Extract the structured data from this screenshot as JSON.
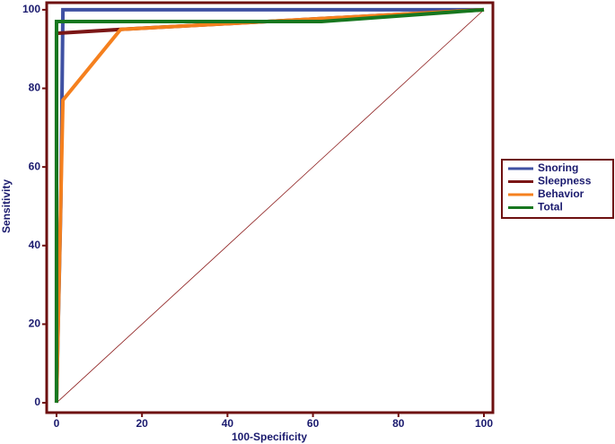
{
  "chart_data": {
    "type": "line",
    "x_label": "100-Specificity",
    "y_label": "Sensitivity",
    "xlim": [
      -2.3,
      102.1
    ],
    "ylim": [
      -2.5,
      101.8
    ],
    "xticks": [
      0,
      20,
      40,
      60,
      80,
      100
    ],
    "yticks": [
      0,
      20,
      40,
      60,
      80,
      100
    ],
    "reference": {
      "x": [
        0,
        100
      ],
      "values": [
        0,
        100
      ],
      "color": "#8b1a1a"
    },
    "series": [
      {
        "name": "Snoring",
        "color": "#3f51a3",
        "x": [
          0,
          1,
          1.5,
          100
        ],
        "values": [
          0,
          50,
          100,
          100
        ]
      },
      {
        "name": "Sleepness",
        "color": "#7b1616",
        "x": [
          0,
          0,
          15,
          100
        ],
        "values": [
          0,
          94,
          95,
          100
        ]
      },
      {
        "name": "Behavior",
        "color": "#f5801e",
        "x": [
          0,
          1.5,
          15,
          100
        ],
        "values": [
          0,
          77,
          95,
          100
        ]
      },
      {
        "name": "Total",
        "color": "#17771f",
        "x": [
          0,
          0,
          62,
          100
        ],
        "values": [
          0,
          97,
          97,
          100
        ]
      }
    ]
  }
}
